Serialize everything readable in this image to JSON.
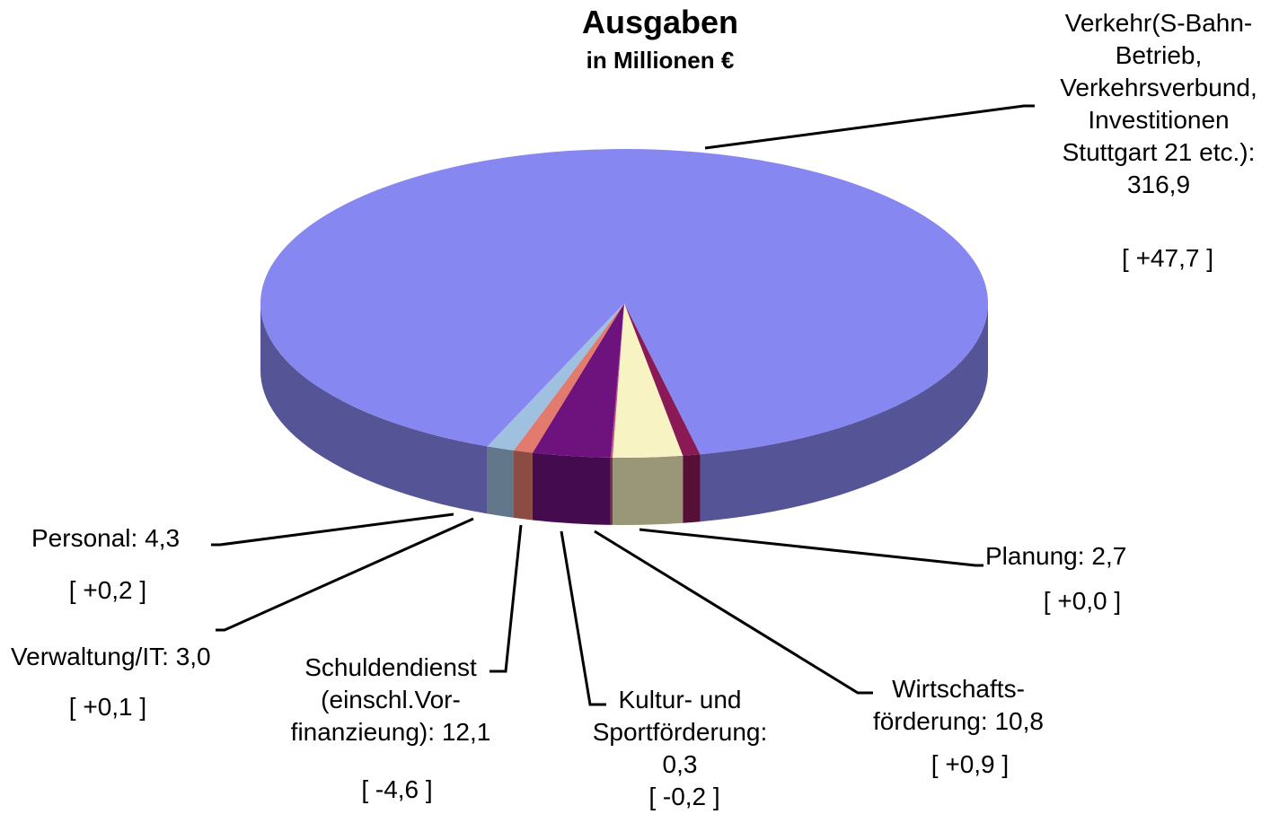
{
  "chart_data": {
    "type": "pie3d",
    "title": "Ausgaben",
    "subtitle": "in Millionen €",
    "categories": [
      "Verkehr(S-Bahn-\nBetrieb,\nVerkehrsverbund,\nInvestitionen\nStuttgart 21 etc.):",
      "Planung:",
      "Wirtschafts-\nförderung:",
      "Kultur- und\nSportförderung:",
      "Schuldendienst\n(einschl.Vor-\nfinanzieung):",
      "Verwaltung/IT:",
      "Personal:"
    ],
    "values": [
      316.9,
      2.7,
      10.8,
      0.3,
      12.1,
      3.0,
      4.3
    ],
    "value_labels": [
      "316,9",
      "2,7",
      "10,8",
      "0,3",
      "12,1",
      "3,0",
      "4,3"
    ],
    "changes": [
      47.7,
      0.0,
      0.9,
      -0.2,
      -4.6,
      0.1,
      0.2
    ],
    "change_labels": [
      "[ +47,7 ]",
      "[ +0,0 ]",
      "[ +0,9 ]",
      "[ -0,2 ]",
      "[ -4,6 ]",
      "[ +0,1 ]",
      "[ +0,2 ]"
    ],
    "colors": [
      "#8787f2",
      "#8a1a55",
      "#f7f3c2",
      "#c05080",
      "#6e127e",
      "#e27a6e",
      "#a0c0e0"
    ]
  }
}
